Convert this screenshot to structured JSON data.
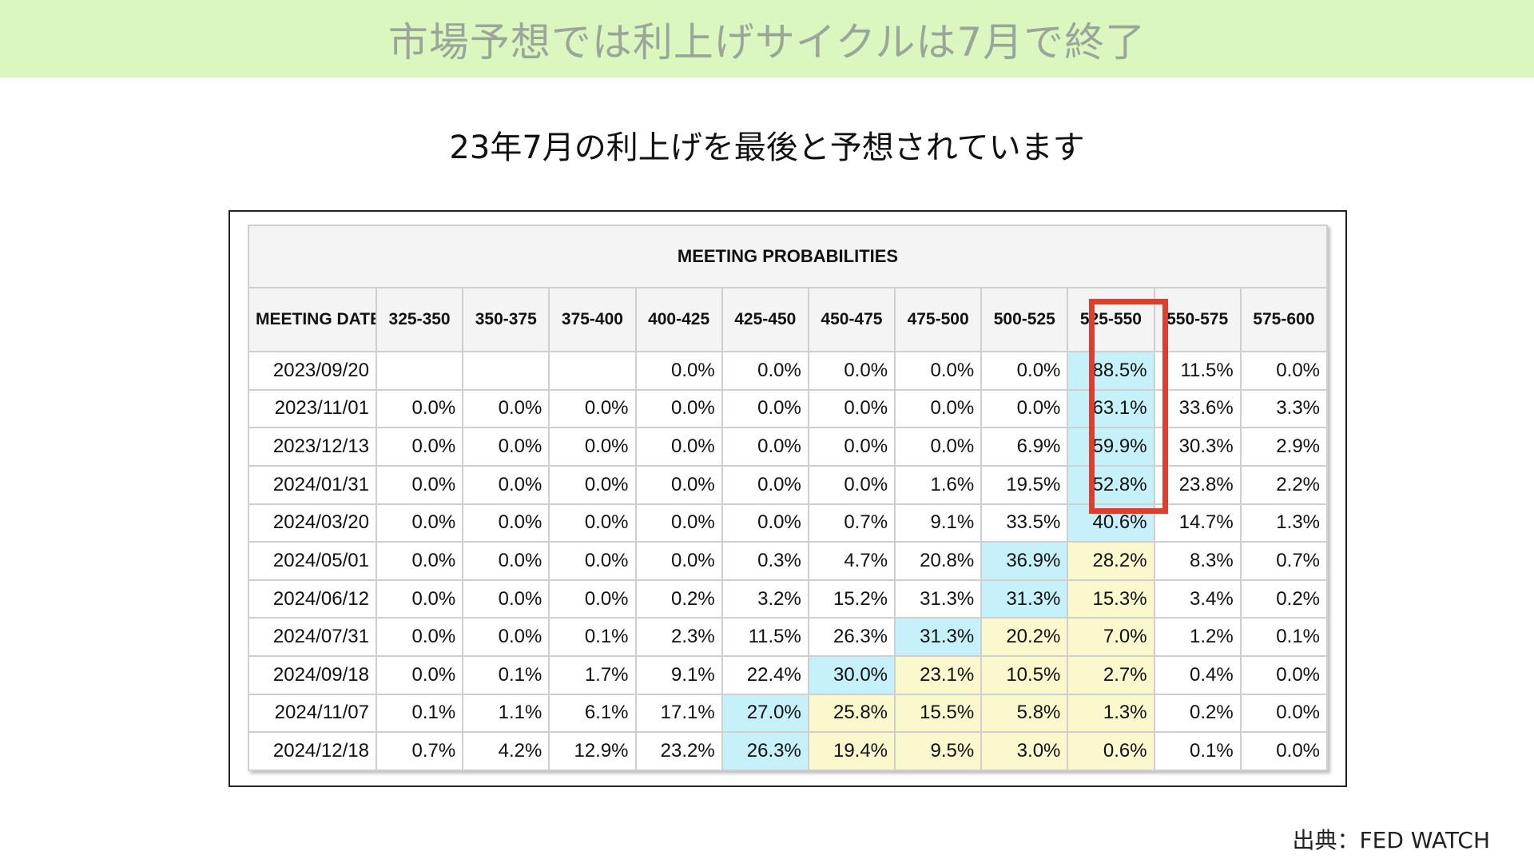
{
  "banner": {
    "title": "市場予想では利上げサイクルは7月で終了"
  },
  "subtitle": "23年7月の利上げを最後と予想されています",
  "table": {
    "caption": "MEETING PROBABILITIES",
    "date_header": "MEETING DATE",
    "columns": [
      "325-350",
      "350-375",
      "375-400",
      "400-425",
      "425-450",
      "450-475",
      "475-500",
      "500-525",
      "525-550",
      "550-575",
      "575-600"
    ],
    "rows": [
      {
        "date": "2023/09/20",
        "values": [
          "",
          "",
          "",
          "0.0%",
          "0.0%",
          "0.0%",
          "0.0%",
          "0.0%",
          "88.5%",
          "11.5%",
          "0.0%"
        ],
        "shade": [
          "",
          "",
          "",
          "",
          "",
          "",
          "",
          "",
          "blue",
          "",
          ""
        ]
      },
      {
        "date": "2023/11/01",
        "values": [
          "0.0%",
          "0.0%",
          "0.0%",
          "0.0%",
          "0.0%",
          "0.0%",
          "0.0%",
          "0.0%",
          "63.1%",
          "33.6%",
          "3.3%"
        ],
        "shade": [
          "",
          "",
          "",
          "",
          "",
          "",
          "",
          "",
          "blue",
          "",
          ""
        ]
      },
      {
        "date": "2023/12/13",
        "values": [
          "0.0%",
          "0.0%",
          "0.0%",
          "0.0%",
          "0.0%",
          "0.0%",
          "0.0%",
          "6.9%",
          "59.9%",
          "30.3%",
          "2.9%"
        ],
        "shade": [
          "",
          "",
          "",
          "",
          "",
          "",
          "",
          "",
          "blue",
          "",
          ""
        ]
      },
      {
        "date": "2024/01/31",
        "values": [
          "0.0%",
          "0.0%",
          "0.0%",
          "0.0%",
          "0.0%",
          "0.0%",
          "1.6%",
          "19.5%",
          "52.8%",
          "23.8%",
          "2.2%"
        ],
        "shade": [
          "",
          "",
          "",
          "",
          "",
          "",
          "",
          "",
          "blue",
          "",
          ""
        ]
      },
      {
        "date": "2024/03/20",
        "values": [
          "0.0%",
          "0.0%",
          "0.0%",
          "0.0%",
          "0.0%",
          "0.7%",
          "9.1%",
          "33.5%",
          "40.6%",
          "14.7%",
          "1.3%"
        ],
        "shade": [
          "",
          "",
          "",
          "",
          "",
          "",
          "",
          "",
          "blue",
          "",
          ""
        ]
      },
      {
        "date": "2024/05/01",
        "values": [
          "0.0%",
          "0.0%",
          "0.0%",
          "0.0%",
          "0.3%",
          "4.7%",
          "20.8%",
          "36.9%",
          "28.2%",
          "8.3%",
          "0.7%"
        ],
        "shade": [
          "",
          "",
          "",
          "",
          "",
          "",
          "",
          "blue",
          "yellow",
          "",
          ""
        ]
      },
      {
        "date": "2024/06/12",
        "values": [
          "0.0%",
          "0.0%",
          "0.0%",
          "0.2%",
          "3.2%",
          "15.2%",
          "31.3%",
          "31.3%",
          "15.3%",
          "3.4%",
          "0.2%"
        ],
        "shade": [
          "",
          "",
          "",
          "",
          "",
          "",
          "",
          "blue",
          "yellow",
          "",
          ""
        ]
      },
      {
        "date": "2024/07/31",
        "values": [
          "0.0%",
          "0.0%",
          "0.1%",
          "2.3%",
          "11.5%",
          "26.3%",
          "31.3%",
          "20.2%",
          "7.0%",
          "1.2%",
          "0.1%"
        ],
        "shade": [
          "",
          "",
          "",
          "",
          "",
          "",
          "blue",
          "yellow",
          "yellow",
          "",
          ""
        ]
      },
      {
        "date": "2024/09/18",
        "values": [
          "0.0%",
          "0.1%",
          "1.7%",
          "9.1%",
          "22.4%",
          "30.0%",
          "23.1%",
          "10.5%",
          "2.7%",
          "0.4%",
          "0.0%"
        ],
        "shade": [
          "",
          "",
          "",
          "",
          "",
          "blue",
          "yellow",
          "yellow",
          "yellow",
          "",
          ""
        ]
      },
      {
        "date": "2024/11/07",
        "values": [
          "0.1%",
          "1.1%",
          "6.1%",
          "17.1%",
          "27.0%",
          "25.8%",
          "15.5%",
          "5.8%",
          "1.3%",
          "0.2%",
          "0.0%"
        ],
        "shade": [
          "",
          "",
          "",
          "",
          "blue",
          "yellow",
          "yellow",
          "yellow",
          "yellow",
          "",
          ""
        ]
      },
      {
        "date": "2024/12/18",
        "values": [
          "0.7%",
          "4.2%",
          "12.9%",
          "23.2%",
          "26.3%",
          "19.4%",
          "9.5%",
          "3.0%",
          "0.6%",
          "0.1%",
          "0.0%"
        ],
        "shade": [
          "",
          "",
          "",
          "",
          "blue",
          "yellow",
          "yellow",
          "yellow",
          "yellow",
          "",
          ""
        ]
      }
    ],
    "colors": {
      "blue": "#c6f1fb",
      "yellow": "#fbf8cd",
      "highlight": "#d94030"
    }
  },
  "source": "出典：FED WATCH"
}
